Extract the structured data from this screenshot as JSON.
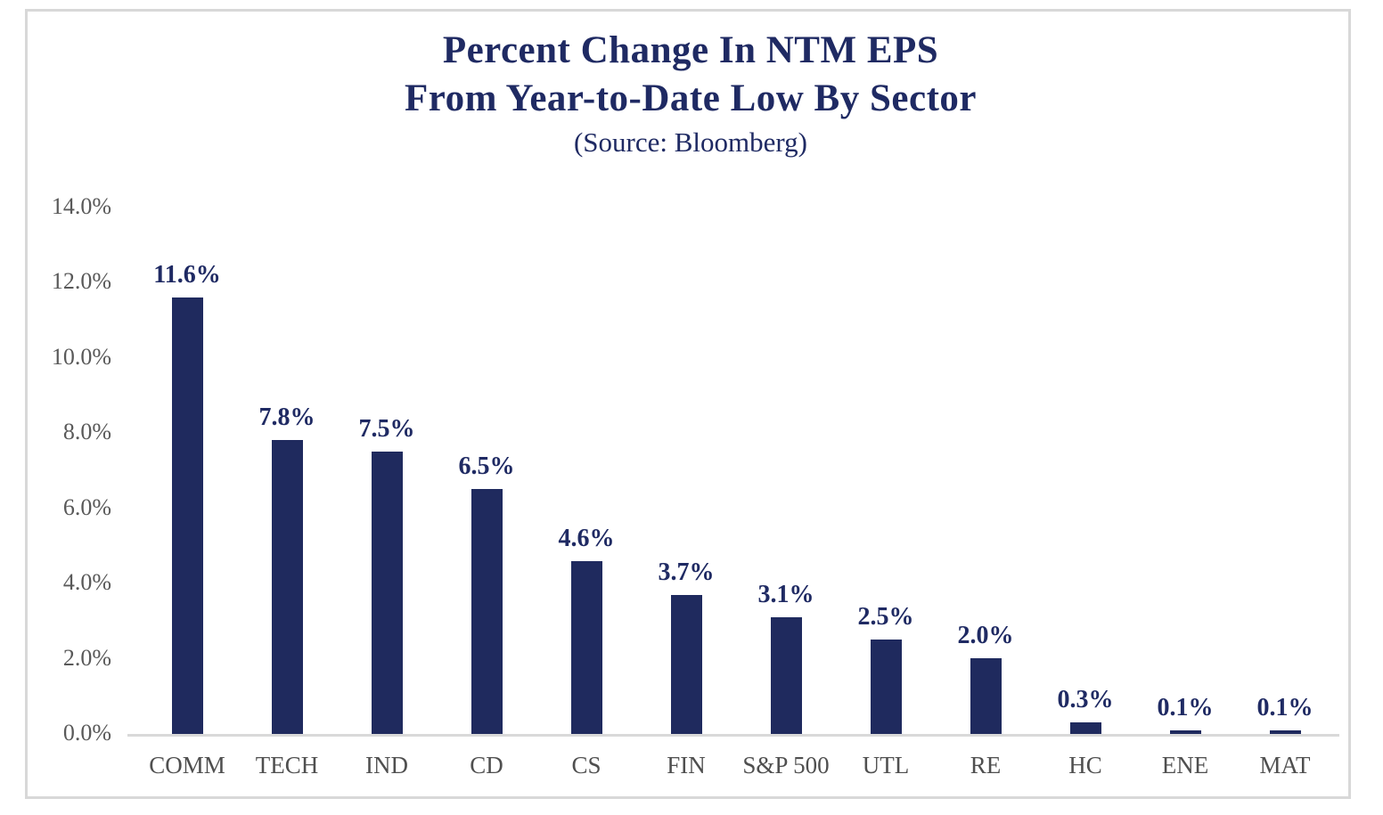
{
  "frame": {
    "border_color": "#D8D8D8",
    "background": "#ffffff"
  },
  "chart_data": {
    "type": "bar",
    "title_line1": "Percent Change In NTM EPS",
    "title_line2": "From Year-to-Date Low By Sector",
    "subtitle": "(Source: Bloomberg)",
    "categories": [
      "COMM",
      "TECH",
      "IND",
      "CD",
      "CS",
      "FIN",
      "S&P 500",
      "UTL",
      "RE",
      "HC",
      "ENE",
      "MAT"
    ],
    "values": [
      11.6,
      7.8,
      7.5,
      6.5,
      4.6,
      3.7,
      3.1,
      2.5,
      2.0,
      0.3,
      0.1,
      0.1
    ],
    "labels": [
      "11.6%",
      "7.8%",
      "7.5%",
      "6.5%",
      "4.6%",
      "3.7%",
      "3.1%",
      "2.5%",
      "2.0%",
      "0.3%",
      "0.1%",
      "0.1%"
    ],
    "yticks": [
      "14.0%",
      "12.0%",
      "10.0%",
      "8.0%",
      "6.0%",
      "4.0%",
      "2.0%",
      "0.0%"
    ],
    "ylim": [
      0,
      14
    ],
    "xlabel": "",
    "ylabel": "",
    "grid": false,
    "legend": false,
    "bar_color": "#1F2A5E",
    "data_label_color": "#1F2A63",
    "title_color": "#1F2A63",
    "axis_text_color": "#595959",
    "axis_line_color": "#D9D9D9"
  }
}
